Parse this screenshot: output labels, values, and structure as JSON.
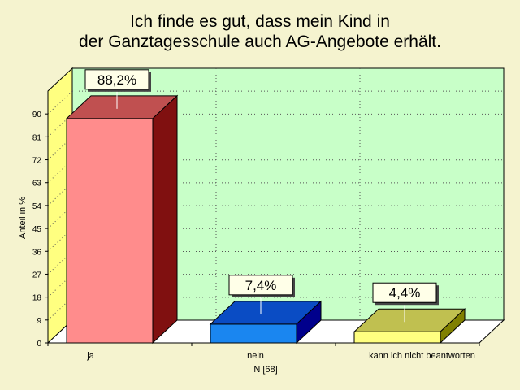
{
  "chart_data": {
    "type": "bar",
    "title_lines": [
      "Ich finde es gut, dass mein Kind in",
      "der Ganztagesschule auch AG-Angebote erhält."
    ],
    "xlabel": "N [68]",
    "ylabel": "Anteil in %",
    "categories": [
      "ja",
      "nein",
      "kann ich nicht beantworten"
    ],
    "values": [
      88.2,
      7.4,
      4.4
    ],
    "data_labels": [
      "88,2%",
      "7,4%",
      "4,4%"
    ],
    "yticks": [
      "0",
      "9",
      "18",
      "27",
      "36",
      "45",
      "54",
      "63",
      "72",
      "81",
      "90"
    ],
    "ylim": [
      0,
      99
    ],
    "grid": true,
    "colors": {
      "front": [
        "#ff8c8c",
        "#1a86f0",
        "#ffff80"
      ],
      "top": [
        "#c05050",
        "#0a4cc4",
        "#c0c050"
      ],
      "side": [
        "#801010",
        "#00008c",
        "#808000"
      ],
      "plot_back": "#c8ffc8",
      "left_wall": "#ffff80",
      "floor": "#ffffff"
    }
  }
}
